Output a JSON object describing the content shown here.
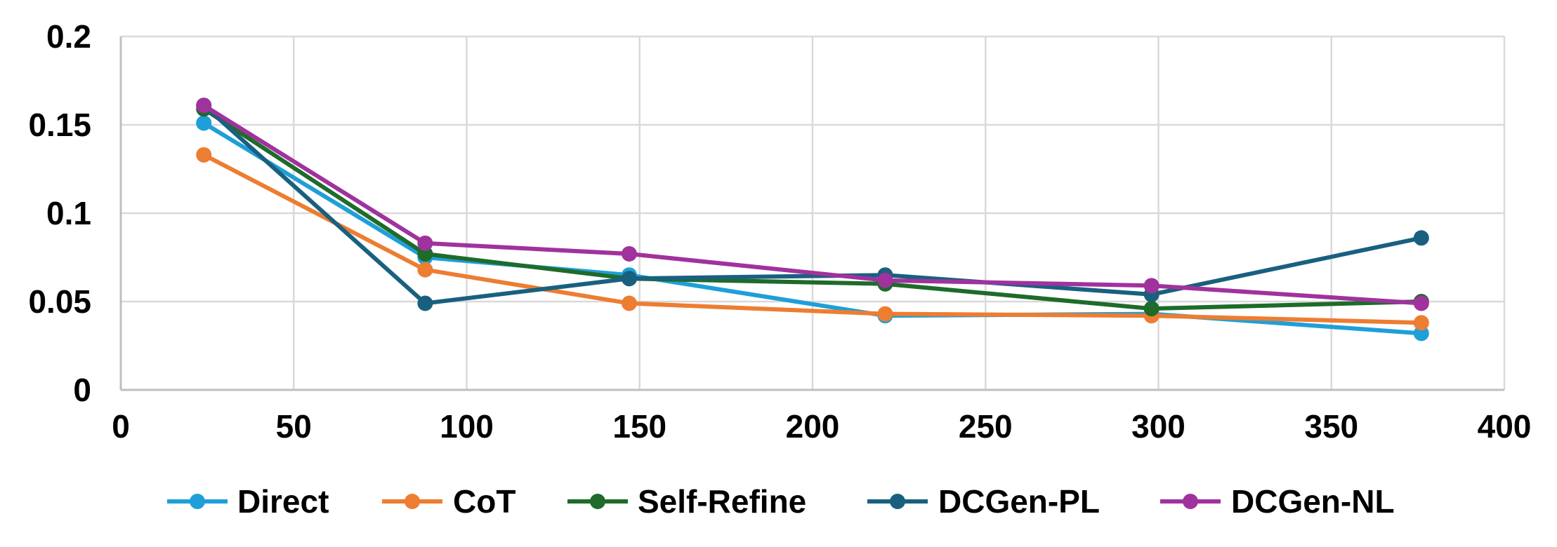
{
  "chart_data": {
    "type": "line",
    "title": "",
    "xlabel": "",
    "ylabel": "",
    "xlim": [
      0,
      400
    ],
    "ylim": [
      0,
      0.2
    ],
    "x_ticks": [
      0,
      50,
      100,
      150,
      200,
      250,
      300,
      350,
      400
    ],
    "x_tick_labels": [
      "0",
      "50",
      "100",
      "150",
      "200",
      "250",
      "300",
      "350",
      "400"
    ],
    "y_ticks": [
      0,
      0.05,
      0.1,
      0.15,
      0.2
    ],
    "y_tick_labels": [
      "0",
      "0.05",
      "0.1",
      "0.15",
      "0.2"
    ],
    "grid": true,
    "legend_position": "bottom",
    "series": [
      {
        "name": "Direct",
        "color": "#1f9fd8",
        "x": [
          24,
          88,
          147,
          221,
          298,
          376
        ],
        "y": [
          0.151,
          0.075,
          0.065,
          0.042,
          0.043,
          0.032
        ]
      },
      {
        "name": "CoT",
        "color": "#ed7d31",
        "x": [
          24,
          88,
          147,
          221,
          298,
          376
        ],
        "y": [
          0.133,
          0.068,
          0.049,
          0.043,
          0.042,
          0.038
        ]
      },
      {
        "name": "Self-Refine",
        "color": "#1e6b2a",
        "x": [
          24,
          88,
          147,
          221,
          298,
          376
        ],
        "y": [
          0.159,
          0.077,
          0.063,
          0.06,
          0.046,
          0.05
        ]
      },
      {
        "name": "DCGen-PL",
        "color": "#19607f",
        "x": [
          24,
          88,
          147,
          221,
          298,
          376
        ],
        "y": [
          0.161,
          0.049,
          0.063,
          0.065,
          0.054,
          0.086
        ]
      },
      {
        "name": "DCGen-NL",
        "color": "#a0329e",
        "x": [
          24,
          88,
          147,
          221,
          298,
          376
        ],
        "y": [
          0.161,
          0.083,
          0.077,
          0.062,
          0.059,
          0.049
        ]
      }
    ]
  }
}
